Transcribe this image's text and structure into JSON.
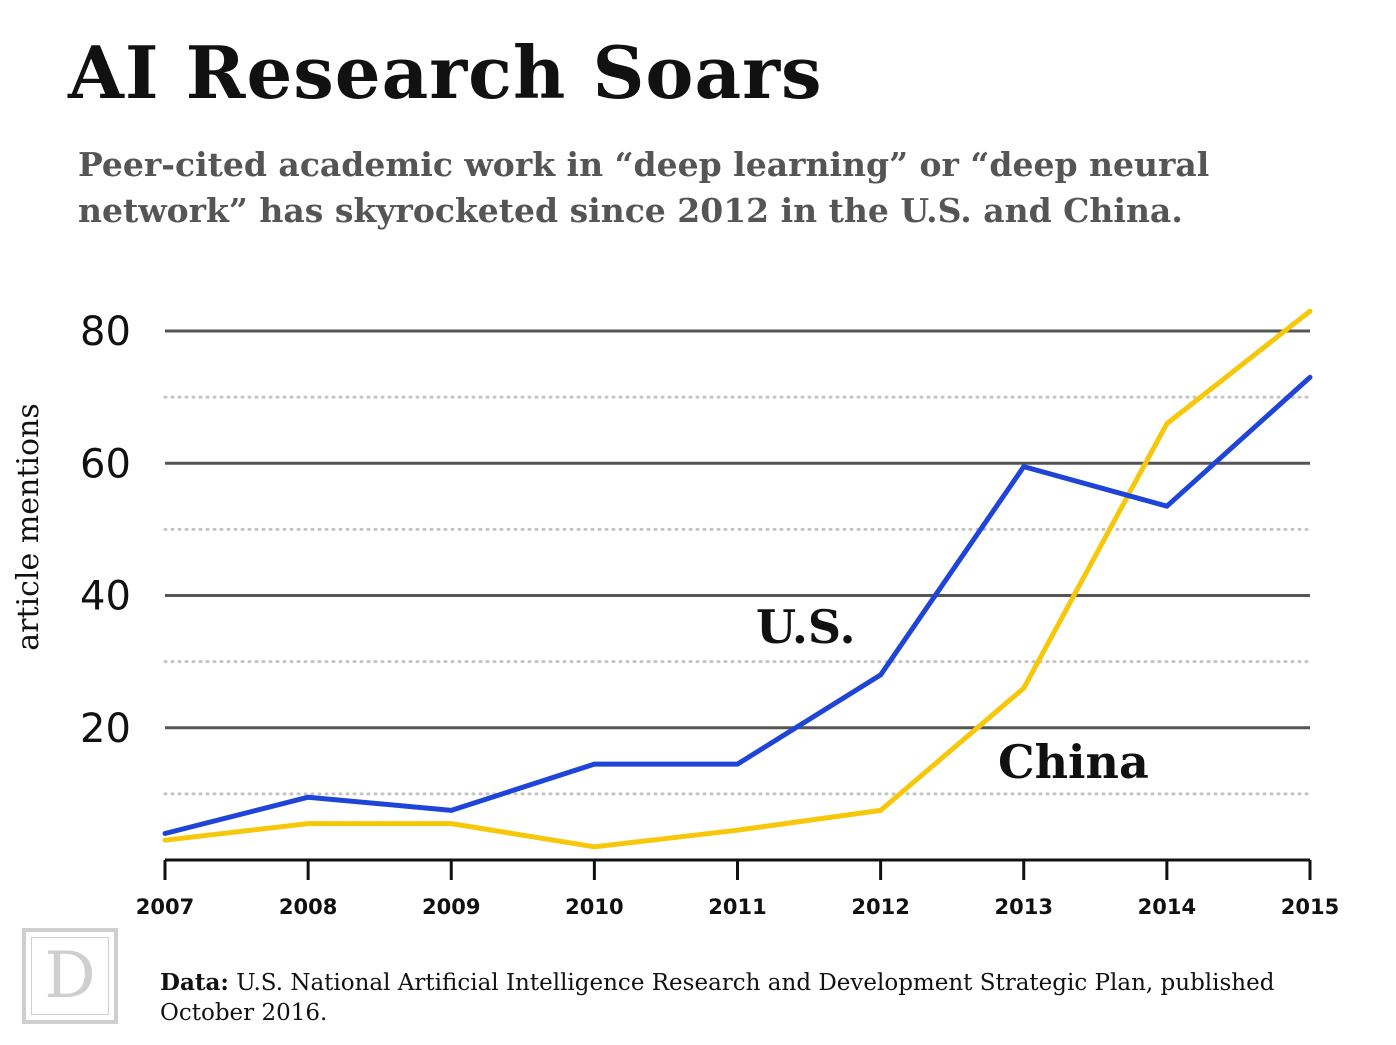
{
  "title": "AI Research Soars",
  "subtitle": "Peer-cited academic work in “deep learning” or “deep neural network” has skyrocketed since 2012 in the U.S. and China.",
  "source": {
    "label": "Data:",
    "text": "U.S. National Artificial Intelligence Research and Development Strategic Plan, published October 2016."
  },
  "logo": {
    "letter": "D"
  },
  "chart_data": {
    "type": "line",
    "ylabel": "article mentions",
    "xlabel": "",
    "x": [
      "2007",
      "2008",
      "2009",
      "2010",
      "2011",
      "2012",
      "2013",
      "2014",
      "2015"
    ],
    "ylim": [
      0,
      80
    ],
    "yticks": [
      20,
      40,
      60,
      80
    ],
    "minor_gridlines": [
      10,
      30,
      50,
      70
    ],
    "grid": true,
    "series": [
      {
        "name": "U.S.",
        "color": "#1f45d8",
        "values": [
          4,
          9.5,
          7.5,
          14.5,
          14.5,
          28,
          59.5,
          53.5,
          73
        ]
      },
      {
        "name": "China",
        "color": "#f7c80a",
        "values": [
          3,
          5.5,
          5.5,
          2,
          4.5,
          7.5,
          26,
          66,
          83
        ]
      }
    ]
  }
}
